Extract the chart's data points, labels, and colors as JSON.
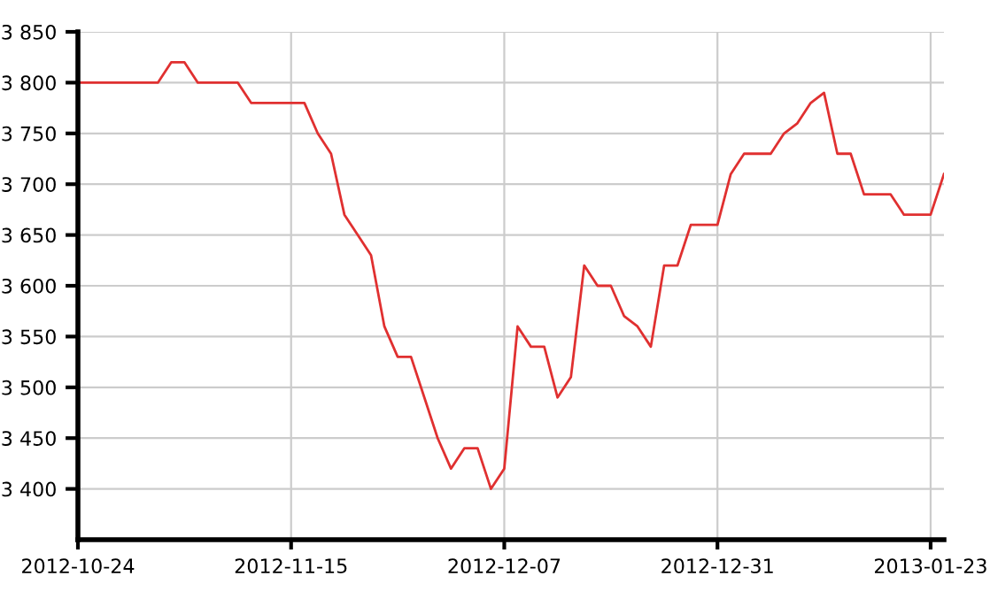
{
  "chart_data": {
    "type": "line",
    "categories": [
      "2012-10-24",
      null,
      null,
      null,
      null,
      null,
      null,
      null,
      null,
      null,
      null,
      null,
      null,
      null,
      null,
      null,
      "2012-11-15",
      null,
      null,
      null,
      null,
      null,
      null,
      null,
      null,
      null,
      null,
      null,
      null,
      null,
      null,
      null,
      "2012-12-07",
      null,
      null,
      null,
      null,
      null,
      null,
      null,
      null,
      null,
      null,
      null,
      null,
      null,
      null,
      null,
      "2012-12-31",
      null,
      null,
      null,
      null,
      null,
      null,
      null,
      null,
      null,
      null,
      null,
      null,
      null,
      null,
      null,
      "2013-01-23",
      null
    ],
    "series": [
      {
        "color": "#e03030",
        "values": [
          3800,
          3800,
          3800,
          3800,
          3800,
          3800,
          3800,
          3820,
          3820,
          3800,
          3800,
          3800,
          3800,
          3780,
          3780,
          3780,
          3780,
          3780,
          3750,
          3730,
          3670,
          3650,
          3630,
          3560,
          3530,
          3530,
          3490,
          3450,
          3420,
          3440,
          3440,
          3400,
          3420,
          3560,
          3540,
          3540,
          3490,
          3510,
          3620,
          3600,
          3600,
          3570,
          3560,
          3540,
          3620,
          3620,
          3660,
          3660,
          3660,
          3710,
          3730,
          3730,
          3730,
          3750,
          3760,
          3780,
          3790,
          3730,
          3730,
          3690,
          3690,
          3690,
          3670,
          3670,
          3670,
          3710
        ]
      }
    ],
    "ylim": [
      3350,
      3850
    ],
    "yticks": [
      {
        "value": 3400,
        "label": "3 400"
      },
      {
        "value": 3450,
        "label": "3 450"
      },
      {
        "value": 3500,
        "label": "3 500"
      },
      {
        "value": 3550,
        "label": "3 550"
      },
      {
        "value": 3600,
        "label": "3 600"
      },
      {
        "value": 3650,
        "label": "3 650"
      },
      {
        "value": 3700,
        "label": "3 700"
      },
      {
        "value": 3750,
        "label": "3 750"
      },
      {
        "value": 3800,
        "label": "3 800"
      },
      {
        "value": 3850,
        "label": "3 850"
      }
    ],
    "grid": true,
    "marker": "none",
    "line_style": "solid",
    "legend": false
  }
}
